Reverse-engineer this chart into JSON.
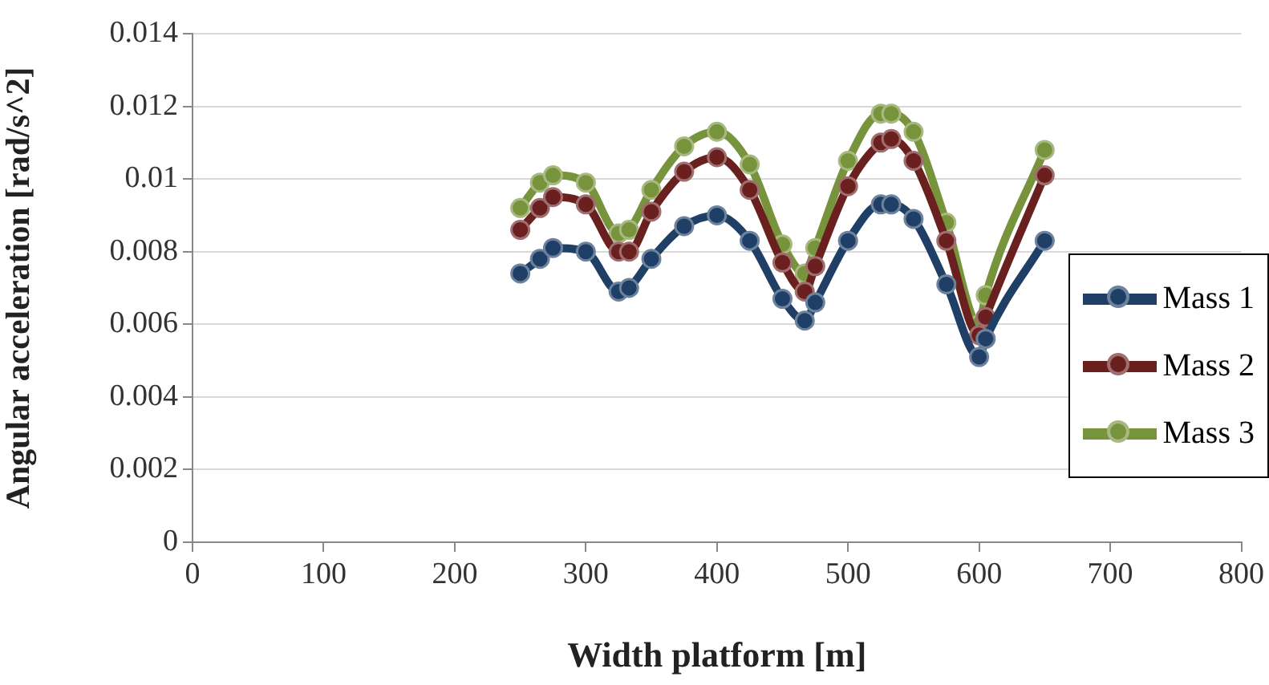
{
  "chart_data": {
    "type": "line",
    "xlabel": "Width platform [m]",
    "ylabel": "Angular acceleration [rad/s^2]",
    "x": [
      250,
      265,
      275,
      300,
      325,
      333,
      350,
      375,
      400,
      425,
      450,
      467,
      475,
      500,
      525,
      533,
      550,
      575,
      600,
      605,
      650
    ],
    "series": [
      {
        "name": "Mass 1",
        "color": "#1f3f66",
        "values": [
          0.0074,
          0.0078,
          0.0081,
          0.008,
          0.0069,
          0.007,
          0.0078,
          0.0087,
          0.009,
          0.0083,
          0.0067,
          0.0061,
          0.0066,
          0.0083,
          0.0093,
          0.0093,
          0.0089,
          0.0071,
          0.0051,
          0.0056,
          0.0083
        ]
      },
      {
        "name": "Mass 2",
        "color": "#6b2020",
        "values": [
          0.0086,
          0.0092,
          0.0095,
          0.0093,
          0.008,
          0.008,
          0.0091,
          0.0102,
          0.0106,
          0.0097,
          0.0077,
          0.0069,
          0.0076,
          0.0098,
          0.011,
          0.0111,
          0.0105,
          0.0083,
          0.0057,
          0.0062,
          0.0101
        ]
      },
      {
        "name": "Mass 3",
        "color": "#77933c",
        "values": [
          0.0092,
          0.0099,
          0.0101,
          0.0099,
          0.0085,
          0.0086,
          0.0097,
          0.0109,
          0.0113,
          0.0104,
          0.0082,
          0.0074,
          0.0081,
          0.0105,
          0.0118,
          0.0118,
          0.0113,
          0.0088,
          0.006,
          0.0068,
          0.0108
        ]
      }
    ],
    "xlim": [
      0,
      800
    ],
    "xticks": [
      0,
      100,
      200,
      300,
      400,
      500,
      600,
      700,
      800
    ],
    "ylim": [
      0,
      0.014
    ],
    "yticks": [
      0,
      0.002,
      0.004,
      0.006,
      0.008,
      0.01,
      0.012,
      0.014
    ],
    "grid": "y",
    "legend": "right",
    "marker": "circle"
  }
}
